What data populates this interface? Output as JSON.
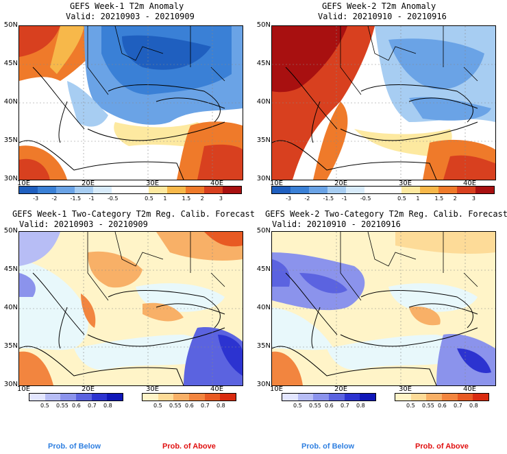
{
  "panels": [
    {
      "title": "GEFS Week-1 T2m Anomaly",
      "valid": "Valid: 20210903 - 20210909"
    },
    {
      "title": "GEFS Week-2 T2m Anomaly",
      "valid": "Valid: 20210910 - 20210916"
    },
    {
      "title": "GEFS Week-1 Two-Category T2m Reg. Calib. Forecast",
      "valid": "Valid: 20210903 - 20210909"
    },
    {
      "title": "GEFS Week-2 Two-Category T2m Reg. Calib. Forecast",
      "valid": "Valid: 20210910 - 20210916"
    }
  ],
  "lat_labels": [
    "50N",
    "45N",
    "40N",
    "35N",
    "30N"
  ],
  "lon_labels": [
    "10E",
    "20E",
    "30E",
    "40E"
  ],
  "anomaly_colorbar": {
    "colors": [
      "#1f5fbf",
      "#3a80d6",
      "#6aa3e6",
      "#a7cdf2",
      "#d8ebfa",
      "#ffffff",
      "#ffffff",
      "#fde9a0",
      "#f7b84a",
      "#ef7a2a",
      "#d8401f",
      "#a81010"
    ],
    "labels": [
      "-3",
      "-2",
      "-1.5",
      "-1",
      "-0.5",
      "0.5",
      "1",
      "1.5",
      "2",
      "3"
    ]
  },
  "prob_below_colorbar": {
    "colors": [
      "#e3e6ff",
      "#b7bdf5",
      "#8b93ec",
      "#5b63e0",
      "#2c33d0",
      "#0f17b8"
    ],
    "labels": [
      "0.5",
      "0.55",
      "0.6",
      "0.7",
      "0.8"
    ]
  },
  "prob_above_colorbar": {
    "colors": [
      "#fff4c8",
      "#fddb98",
      "#f8b067",
      "#f2853f",
      "#e85a23",
      "#d92b10"
    ],
    "labels": [
      "0.5",
      "0.55",
      "0.6",
      "0.7",
      "0.8"
    ]
  },
  "footer": {
    "below": "Prob. of Below",
    "above": "Prob. of Above"
  },
  "colors": {
    "below_text": "#2f7fe0",
    "above_text": "#e01010"
  }
}
